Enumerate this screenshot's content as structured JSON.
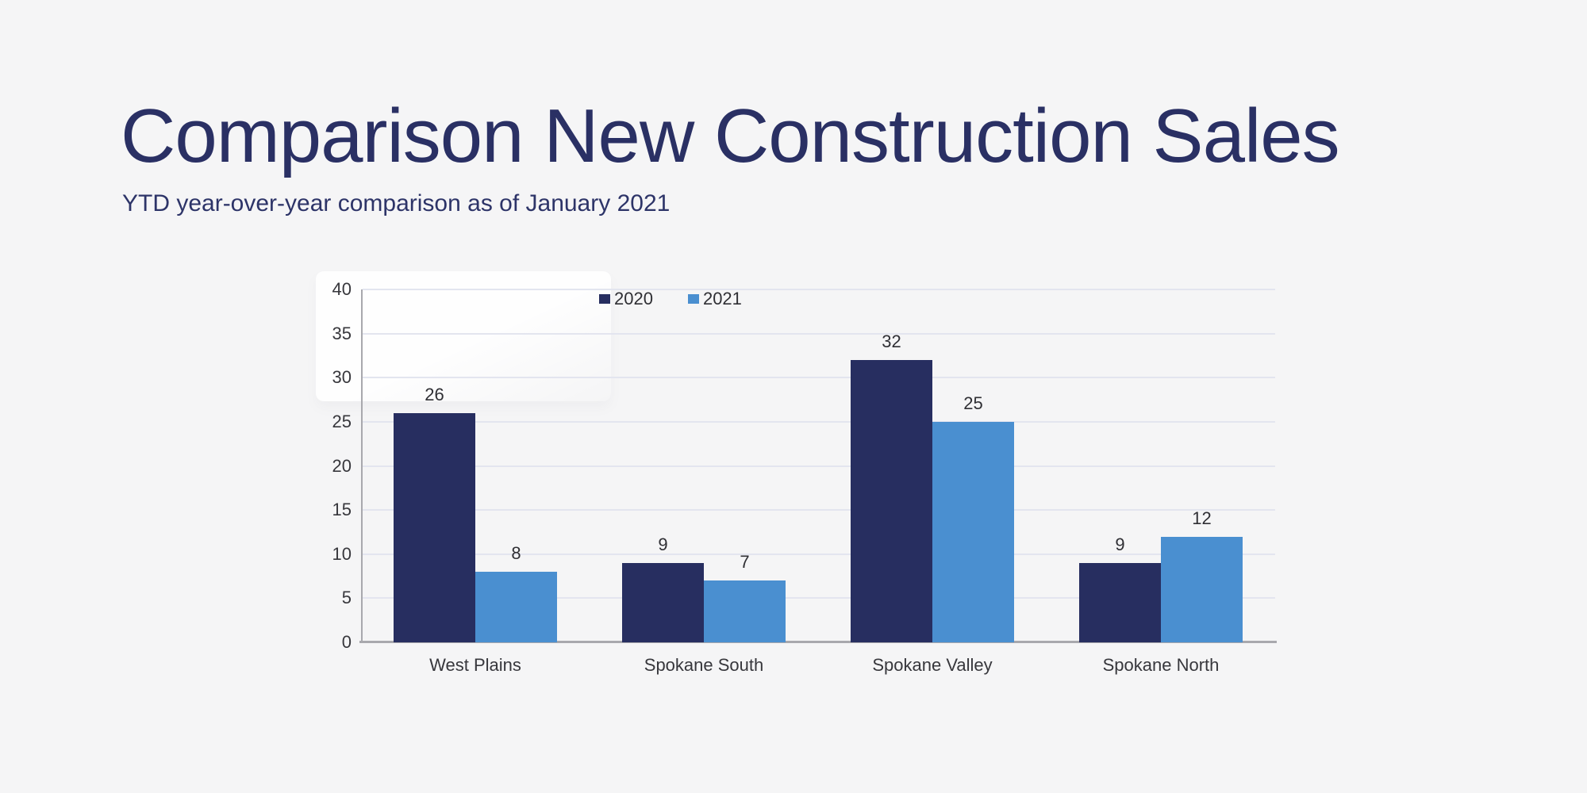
{
  "header": {
    "title": "Comparison New Construction Sales",
    "subtitle": "YTD year-over-year comparison as of January 2021"
  },
  "colors": {
    "background": "#f5f5f6",
    "title_text": "#2a3064",
    "series_2020": "#272e60",
    "series_2021": "#4a8fd0",
    "gridline": "#e3e5ef",
    "axis_line": "#a8a8ad",
    "label_text": "#37373c"
  },
  "chart_data": {
    "type": "bar",
    "title": "",
    "xlabel": "",
    "ylabel": "",
    "categories": [
      "West Plains",
      "Spokane South",
      "Spokane Valley",
      "Spokane North"
    ],
    "series": [
      {
        "name": "2020",
        "color": "#272e60",
        "values": [
          26,
          9,
          32,
          9
        ]
      },
      {
        "name": "2021",
        "color": "#4a8fd0",
        "values": [
          8,
          7,
          25,
          12
        ]
      }
    ],
    "ylim": [
      0,
      40
    ],
    "ytick_step": 5,
    "yticks": [
      0,
      5,
      10,
      15,
      20,
      25,
      30,
      35,
      40
    ],
    "grid": true,
    "data_labels": true,
    "legend_position": "top-center"
  }
}
